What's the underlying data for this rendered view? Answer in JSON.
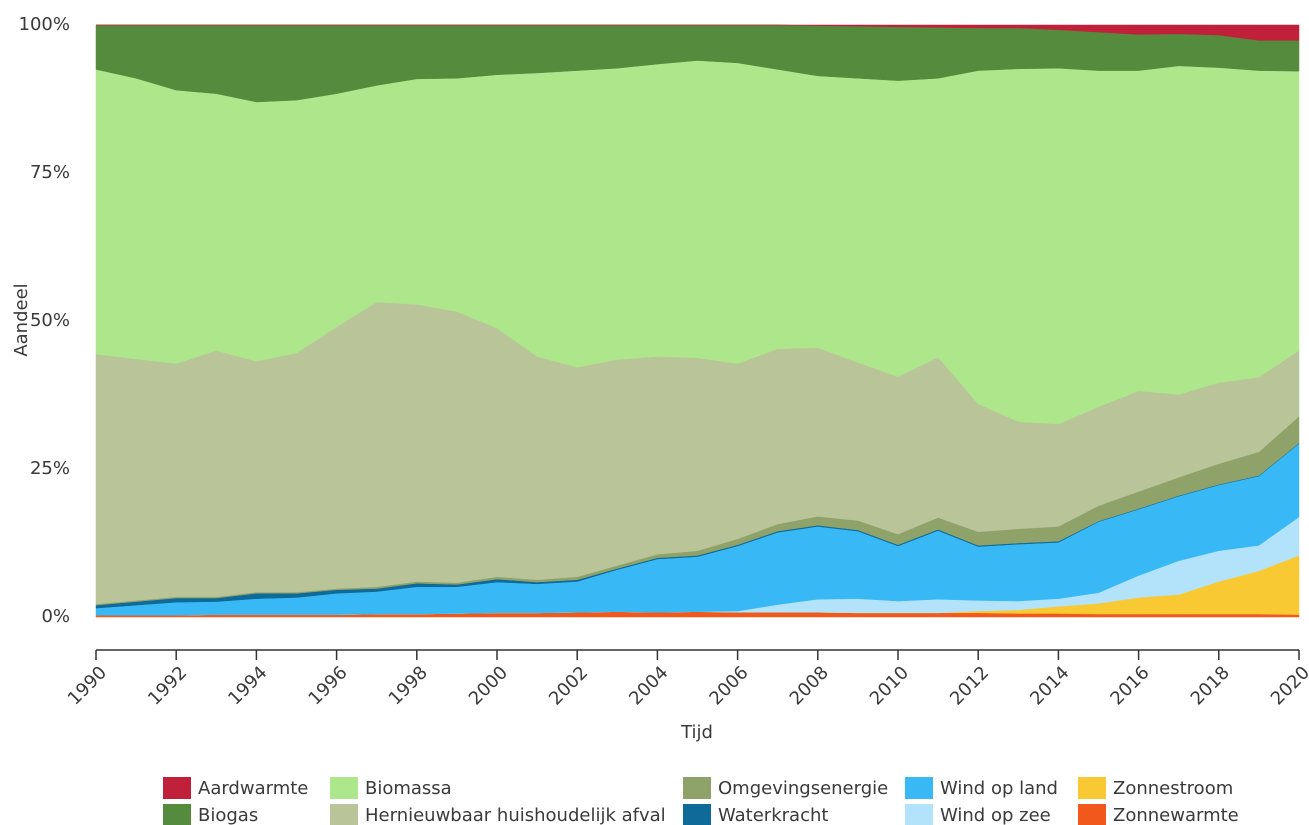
{
  "chart_data": {
    "type": "stacked-area",
    "x_label": "Tijd",
    "y_label": "Aandeel",
    "x": [
      1990,
      1991,
      1992,
      1993,
      1994,
      1995,
      1996,
      1997,
      1998,
      1999,
      2000,
      2001,
      2002,
      2003,
      2004,
      2005,
      2006,
      2007,
      2008,
      2009,
      2010,
      2011,
      2012,
      2013,
      2014,
      2015,
      2016,
      2017,
      2018,
      2019,
      2020
    ],
    "xlim": [
      1990,
      2020
    ],
    "xticks": [
      1990,
      1992,
      1994,
      1996,
      1998,
      2000,
      2002,
      2004,
      2006,
      2008,
      2010,
      2012,
      2014,
      2016,
      2018,
      2020
    ],
    "ylim": [
      0,
      100
    ],
    "yticks": [
      {
        "value": 0,
        "label": "0%"
      },
      {
        "value": 25,
        "label": "25%"
      },
      {
        "value": 50,
        "label": "50%"
      },
      {
        "value": 75,
        "label": "75%"
      },
      {
        "value": 100,
        "label": "100%"
      }
    ],
    "grid": false,
    "legend": "bottom",
    "series": [
      {
        "name": "Aardwarmte",
        "color": "#c1203a",
        "values": [
          0,
          0,
          0,
          0,
          0,
          0,
          0,
          0,
          0,
          0,
          0,
          0,
          0,
          0,
          0,
          0,
          0,
          0,
          0.1,
          0.2,
          0.3,
          0.4,
          0.5,
          0.5,
          0.8,
          1.2,
          1.6,
          1.5,
          1.7,
          2.6,
          2.6
        ]
      },
      {
        "name": "Biogas",
        "color": "#558b3c",
        "values": [
          7.5,
          9,
          11,
          11.6,
          13,
          12.7,
          11.6,
          10.2,
          9.1,
          9,
          8.4,
          8.1,
          7.7,
          7.3,
          6.6,
          6,
          6.4,
          7.5,
          8.5,
          8.8,
          9.1,
          8.6,
          7.2,
          6.9,
          6.5,
          6.5,
          6.1,
          5.4,
          5.5,
          5.1,
          5.2
        ]
      },
      {
        "name": "Biomassa",
        "color": "#ade68b",
        "values": [
          48.1,
          47.4,
          46.2,
          43.4,
          43.8,
          42.7,
          39.4,
          36.6,
          38.1,
          39.4,
          42.8,
          47.9,
          50.1,
          49.2,
          49.4,
          50.2,
          50.8,
          47.2,
          45.9,
          48,
          50,
          47.1,
          56.3,
          59.6,
          60.1,
          56.8,
          54.1,
          55.5,
          53.2,
          51.8,
          47.2
        ]
      },
      {
        "name": "Hernieuwbaar huishoudelijk afval",
        "color": "#b9c598",
        "values": [
          42.2,
          40.8,
          39.4,
          41.6,
          39,
          40.4,
          44.2,
          48.1,
          46.8,
          45.8,
          42,
          37.7,
          35.4,
          34.8,
          33.4,
          32.6,
          29.6,
          29.6,
          28.5,
          26.7,
          26.6,
          27.1,
          21.6,
          18.1,
          17.3,
          16.7,
          17,
          14,
          13.7,
          12.6,
          11.1
        ]
      },
      {
        "name": "Omgevingsenergie",
        "color": "#8fa26a",
        "values": [
          0.2,
          0.2,
          0.2,
          0.2,
          0.2,
          0.2,
          0.2,
          0.3,
          0.3,
          0.3,
          0.4,
          0.4,
          0.5,
          0.5,
          0.6,
          0.8,
          1.0,
          1.2,
          1.5,
          1.6,
          1.8,
          2.0,
          2.3,
          2.4,
          2.5,
          2.6,
          2.9,
          3.1,
          3.5,
          4.0,
          4.5
        ]
      },
      {
        "name": "Waterkracht",
        "color": "#0d6a99",
        "values": [
          0.5,
          0.6,
          0.7,
          0.6,
          0.9,
          0.7,
          0.6,
          0.5,
          0.6,
          0.4,
          0.5,
          0.3,
          0.3,
          0.2,
          0.2,
          0.2,
          0.2,
          0.2,
          0.2,
          0.2,
          0.2,
          0.2,
          0.2,
          0.2,
          0.2,
          0.1,
          0.1,
          0.1,
          0.1,
          0.1,
          0.1
        ]
      },
      {
        "name": "Wind op land",
        "color": "#38b9f6",
        "values": [
          1.2,
          1.7,
          2.2,
          2.2,
          2.7,
          2.9,
          3.6,
          3.8,
          4.6,
          4.5,
          5.2,
          4.9,
          5.2,
          7.1,
          9.0,
          9.3,
          11.0,
          12.2,
          12.3,
          11.4,
          9.3,
          11.6,
          9.1,
          9.6,
          9.5,
          12.0,
          11.2,
          10.9,
          11.1,
          11.7,
          12.4
        ]
      },
      {
        "name": "Wind op zee",
        "color": "#b3e3fb",
        "values": [
          0,
          0,
          0,
          0,
          0,
          0,
          0,
          0,
          0,
          0,
          0,
          0,
          0,
          0,
          0,
          0,
          0.2,
          1.3,
          2.2,
          2.4,
          2.0,
          2.3,
          1.8,
          1.5,
          1.3,
          1.8,
          3.7,
          5.7,
          5.2,
          4.3,
          6.5
        ]
      },
      {
        "name": "Zonnestroom",
        "color": "#f8c932",
        "values": [
          0,
          0,
          0,
          0,
          0,
          0,
          0,
          0,
          0,
          0,
          0,
          0,
          0,
          0,
          0,
          0,
          0,
          0,
          0,
          0,
          0,
          0,
          0.3,
          0.6,
          1.2,
          1.8,
          2.8,
          3.3,
          5.5,
          7.3,
          10.0
        ]
      },
      {
        "name": "Zonnewarmte",
        "color": "#f1591c",
        "values": [
          0.3,
          0.3,
          0.3,
          0.4,
          0.4,
          0.4,
          0.4,
          0.5,
          0.5,
          0.6,
          0.7,
          0.7,
          0.8,
          0.9,
          0.8,
          0.9,
          0.8,
          0.8,
          0.8,
          0.7,
          0.7,
          0.7,
          0.7,
          0.6,
          0.6,
          0.5,
          0.5,
          0.5,
          0.5,
          0.5,
          0.4
        ]
      }
    ]
  }
}
